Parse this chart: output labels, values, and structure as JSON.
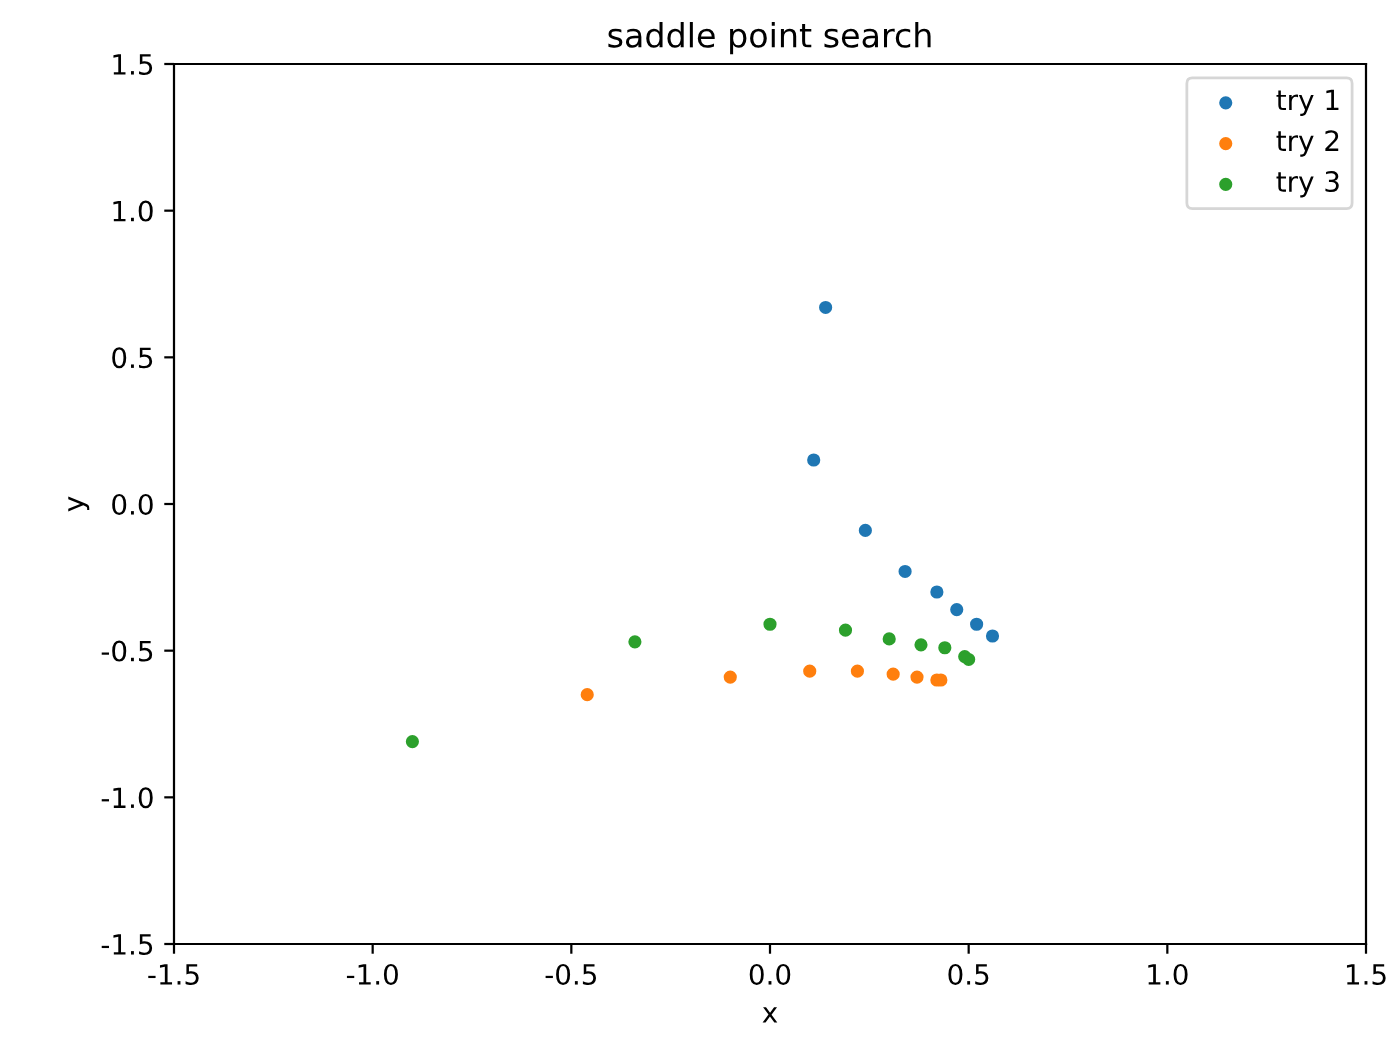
{
  "chart_data": {
    "type": "scatter",
    "title": "saddle point search",
    "xlabel": "x",
    "ylabel": "y",
    "xlim": [
      -1.5,
      1.5
    ],
    "ylim": [
      -1.5,
      1.5
    ],
    "xticks": [
      -1.5,
      {
        "value": -1,
        "label": "-1.0"
      },
      -0.5,
      {
        "value": 0,
        "label": "0.0"
      },
      0.5,
      {
        "value": 1,
        "label": "1.0"
      },
      1.5
    ],
    "yticks": [
      -1.5,
      {
        "value": -1,
        "label": "-1.0"
      },
      -0.5,
      {
        "value": 0,
        "label": "0.0"
      },
      0.5,
      {
        "value": 1,
        "label": "1.0"
      },
      1.5
    ],
    "legend": "top right",
    "marker": "circle",
    "grid": false,
    "series": [
      {
        "name": "try 1",
        "color": "#1f77b4",
        "x": [
          0.14,
          0.11,
          0.24,
          0.34,
          0.42,
          0.47,
          0.52,
          0.56
        ],
        "values": [
          0.67,
          0.15,
          -0.09,
          -0.23,
          -0.3,
          -0.36,
          -0.41,
          -0.45
        ]
      },
      {
        "name": "try 2",
        "color": "#ff7f0e",
        "x": [
          -0.46,
          -0.1,
          0.1,
          0.22,
          0.31,
          0.37,
          0.42,
          0.43
        ],
        "values": [
          -0.65,
          -0.59,
          -0.57,
          -0.57,
          -0.58,
          -0.59,
          -0.6,
          -0.6
        ]
      },
      {
        "name": "try 3",
        "color": "#2ca02c",
        "x": [
          -0.9,
          -0.34,
          0.0,
          0.19,
          0.3,
          0.38,
          0.44,
          0.49,
          0.5
        ],
        "values": [
          -0.81,
          -0.47,
          -0.41,
          -0.43,
          -0.46,
          -0.48,
          -0.49,
          -0.52,
          -0.53
        ]
      }
    ]
  }
}
